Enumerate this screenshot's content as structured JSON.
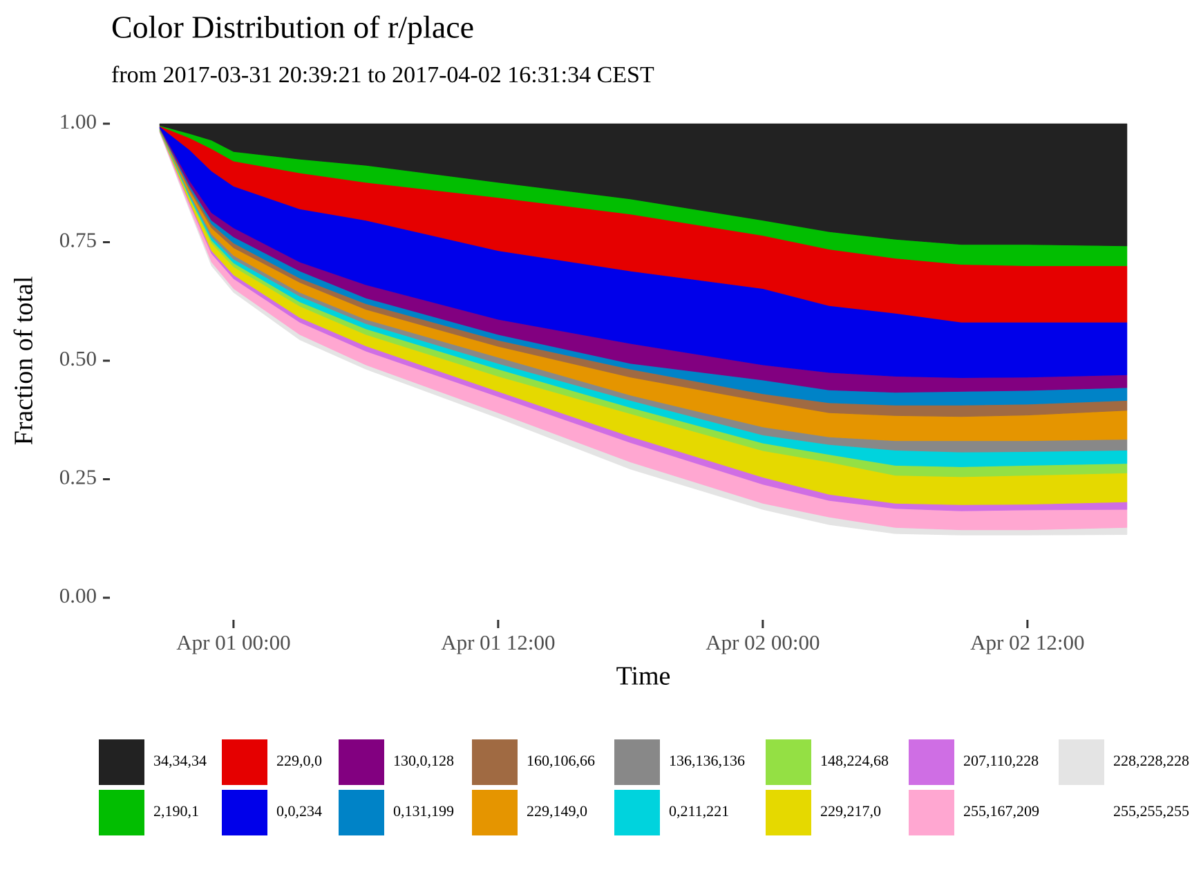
{
  "chart_data": {
    "type": "stacked_area",
    "title": "Color Distribution of r/place",
    "subtitle": "from 2017-03-31 20:39:21 to 2017-04-02 16:31:34 CEST",
    "x_label": "Time",
    "y_label": "Fraction of total",
    "x": [
      "Mar 31 20:39",
      "Mar 31 22:00",
      "Mar 31 23:00",
      "Apr 01 00:00",
      "Apr 01 03:00",
      "Apr 01 06:00",
      "Apr 01 12:00",
      "Apr 01 18:00",
      "Apr 02 00:00",
      "Apr 02 03:00",
      "Apr 02 06:00",
      "Apr 02 09:00",
      "Apr 02 12:00",
      "Apr 02 16:31"
    ],
    "xlim": [
      "Mar 31 20:39",
      "Apr 02 16:31"
    ],
    "xticks": [
      "Apr 01 00:00",
      "Apr 01 12:00",
      "Apr 02 00:00",
      "Apr 02 12:00"
    ],
    "ylim": [
      0,
      1
    ],
    "yticks": [
      {
        "value": 0,
        "label": "0.00"
      },
      {
        "value": 0.25,
        "label": "0.25"
      },
      {
        "value": 0.5,
        "label": "0.50"
      },
      {
        "value": 0.75,
        "label": "0.75"
      },
      {
        "value": 1,
        "label": "1.00"
      }
    ],
    "grid": false,
    "legend_position": "bottom",
    "series": [
      {
        "name": "34,34,34",
        "color": "#222222",
        "values": [
          0.004,
          0.021,
          0.035,
          0.059,
          0.075,
          0.088,
          0.124,
          0.159,
          0.204,
          0.228,
          0.244,
          0.255,
          0.255,
          0.258
        ]
      },
      {
        "name": "2,190,1",
        "color": "#02be01",
        "values": [
          0.001,
          0.009,
          0.018,
          0.02,
          0.029,
          0.036,
          0.032,
          0.032,
          0.032,
          0.037,
          0.04,
          0.042,
          0.045,
          0.042
        ]
      },
      {
        "name": "229,0,0",
        "color": "#e50000",
        "values": [
          0.001,
          0.025,
          0.047,
          0.053,
          0.076,
          0.08,
          0.112,
          0.12,
          0.112,
          0.119,
          0.116,
          0.122,
          0.119,
          0.119
        ]
      },
      {
        "name": "0,0,234",
        "color": "#0000ea",
        "values": [
          0.002,
          0.065,
          0.088,
          0.088,
          0.112,
          0.136,
          0.145,
          0.153,
          0.161,
          0.141,
          0.133,
          0.117,
          0.116,
          0.111
        ]
      },
      {
        "name": "130,0,128",
        "color": "#820080",
        "values": [
          0.001,
          0.01,
          0.016,
          0.019,
          0.019,
          0.028,
          0.032,
          0.042,
          0.032,
          0.037,
          0.034,
          0.029,
          0.028,
          0.027
        ]
      },
      {
        "name": "0,131,199",
        "color": "#0083c7",
        "values": [
          0.001,
          0.005,
          0.008,
          0.013,
          0.015,
          0.012,
          0.012,
          0.012,
          0.029,
          0.027,
          0.027,
          0.029,
          0.029,
          0.027
        ]
      },
      {
        "name": "160,106,66",
        "color": "#a06a42",
        "values": [
          0.001,
          0.005,
          0.008,
          0.01,
          0.009,
          0.012,
          0.013,
          0.017,
          0.016,
          0.021,
          0.022,
          0.024,
          0.023,
          0.021
        ]
      },
      {
        "name": "229,149,0",
        "color": "#e59500",
        "values": [
          0.001,
          0.007,
          0.013,
          0.016,
          0.021,
          0.021,
          0.023,
          0.038,
          0.054,
          0.051,
          0.053,
          0.051,
          0.054,
          0.061
        ]
      },
      {
        "name": "136,136,136",
        "color": "#888888",
        "values": [
          0.001,
          0.003,
          0.006,
          0.008,
          0.008,
          0.009,
          0.013,
          0.011,
          0.017,
          0.016,
          0.02,
          0.024,
          0.023,
          0.023
        ]
      },
      {
        "name": "0,211,221",
        "color": "#00d3dd",
        "values": [
          0.001,
          0.004,
          0.007,
          0.008,
          0.012,
          0.011,
          0.012,
          0.015,
          0.017,
          0.021,
          0.032,
          0.031,
          0.029,
          0.028
        ]
      },
      {
        "name": "148,224,68",
        "color": "#94e044",
        "values": [
          0.001,
          0.003,
          0.006,
          0.008,
          0.009,
          0.012,
          0.015,
          0.013,
          0.016,
          0.016,
          0.021,
          0.021,
          0.021,
          0.02
        ]
      },
      {
        "name": "229,217,0",
        "color": "#e5d900",
        "values": [
          0.001,
          0.008,
          0.016,
          0.017,
          0.024,
          0.024,
          0.032,
          0.048,
          0.056,
          0.068,
          0.059,
          0.059,
          0.061,
          0.061
        ]
      },
      {
        "name": "207,110,228",
        "color": "#cf6ee4",
        "values": [
          0.001,
          0.003,
          0.006,
          0.008,
          0.01,
          0.011,
          0.011,
          0.013,
          0.015,
          0.013,
          0.011,
          0.013,
          0.012,
          0.016
        ]
      },
      {
        "name": "255,167,209",
        "color": "#ffa7d1",
        "values": [
          0.001,
          0.009,
          0.018,
          0.021,
          0.026,
          0.029,
          0.034,
          0.041,
          0.04,
          0.035,
          0.04,
          0.04,
          0.042,
          0.038
        ]
      },
      {
        "name": "228,228,228",
        "color": "#e4e4e4",
        "values": [
          0.001,
          0.005,
          0.008,
          0.008,
          0.011,
          0.009,
          0.011,
          0.015,
          0.013,
          0.016,
          0.013,
          0.011,
          0.011,
          0.015
        ]
      },
      {
        "name": "255,255,255",
        "color": "#ffffff",
        "values": [
          0.981,
          0.818,
          0.7,
          0.644,
          0.544,
          0.482,
          0.379,
          0.271,
          0.186,
          0.154,
          0.135,
          0.132,
          0.132,
          0.133
        ]
      }
    ]
  }
}
